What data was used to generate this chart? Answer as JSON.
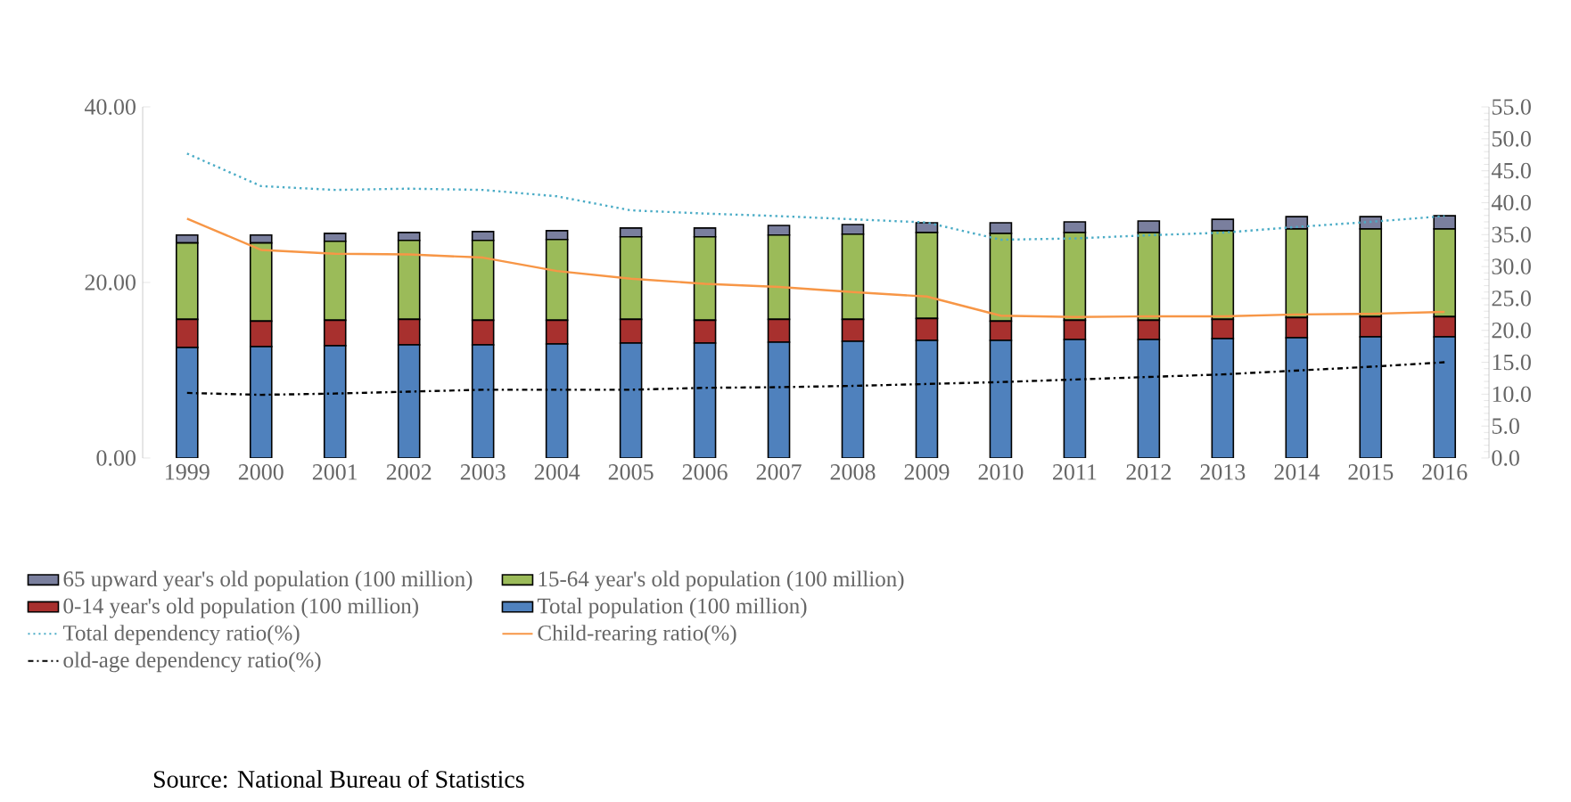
{
  "chart_data": {
    "type": "bar",
    "stacked": true,
    "categories": [
      "1999",
      "2000",
      "2001",
      "2002",
      "2003",
      "2004",
      "2005",
      "2006",
      "2007",
      "2008",
      "2009",
      "2010",
      "2011",
      "2012",
      "2013",
      "2014",
      "2015",
      "2016"
    ],
    "series": [
      {
        "name": "Total population (100 million)",
        "color": "#4f81bd",
        "values": [
          12.6,
          12.7,
          12.8,
          12.9,
          12.9,
          13.0,
          13.1,
          13.1,
          13.2,
          13.3,
          13.4,
          13.4,
          13.5,
          13.5,
          13.6,
          13.7,
          13.8,
          13.8
        ]
      },
      {
        "name": "0-14  year's old population  (100 million)",
        "color": "#a8302e",
        "values": [
          3.2,
          2.9,
          2.9,
          2.9,
          2.8,
          2.7,
          2.7,
          2.6,
          2.6,
          2.5,
          2.5,
          2.2,
          2.2,
          2.2,
          2.2,
          2.3,
          2.3,
          2.3
        ]
      },
      {
        "name": "15-64 year's old population  (100 million)",
        "color": "#9bbb59",
        "values": [
          8.7,
          8.9,
          9.0,
          9.0,
          9.1,
          9.2,
          9.4,
          9.5,
          9.6,
          9.7,
          9.8,
          10.0,
          10.0,
          10.0,
          10.1,
          10.1,
          10.0,
          10.0
        ]
      },
      {
        "name": "65 upward year's old population  (100 million)",
        "color": "#7a7f9e",
        "values": [
          0.9,
          0.9,
          0.9,
          0.9,
          1.0,
          1.0,
          1.0,
          1.0,
          1.1,
          1.1,
          1.1,
          1.2,
          1.2,
          1.3,
          1.3,
          1.4,
          1.4,
          1.5
        ]
      },
      {
        "name": "Total dependency ratio(%)",
        "type": "line",
        "axis": "y2",
        "color": "#4bacc6",
        "line_style": "dotted",
        "values": [
          47.7,
          42.6,
          42.0,
          42.2,
          42.0,
          41.0,
          38.8,
          38.3,
          37.9,
          37.4,
          36.9,
          34.2,
          34.4,
          34.9,
          35.3,
          36.2,
          37.0,
          37.9
        ]
      },
      {
        "name": "Child-rearing ratio(%)",
        "type": "line",
        "axis": "y2",
        "color": "#f79646",
        "line_style": "solid",
        "values": [
          37.5,
          32.6,
          32.0,
          31.9,
          31.4,
          29.3,
          28.1,
          27.3,
          26.8,
          26.0,
          25.3,
          22.3,
          22.1,
          22.2,
          22.2,
          22.5,
          22.6,
          22.9
        ]
      },
      {
        "name": "old-age dependency ratio(%)",
        "type": "line",
        "axis": "y2",
        "color": "#000000",
        "line_style": "dashdot",
        "values": [
          10.2,
          9.9,
          10.1,
          10.4,
          10.7,
          10.7,
          10.7,
          11.0,
          11.1,
          11.3,
          11.6,
          11.9,
          12.3,
          12.7,
          13.1,
          13.7,
          14.3,
          15.0
        ]
      }
    ],
    "ylim": [
      0,
      40
    ],
    "yticks": [
      {
        "value": 0,
        "label": "0.00"
      },
      {
        "value": 20,
        "label": "20.00"
      },
      {
        "value": 40,
        "label": "40.00"
      }
    ],
    "y2lim": [
      0,
      55
    ],
    "y2ticks": [
      {
        "value": 0,
        "label": "0.0"
      },
      {
        "value": 5,
        "label": "5.0"
      },
      {
        "value": 10,
        "label": "10.0"
      },
      {
        "value": 15,
        "label": "15.0"
      },
      {
        "value": 20,
        "label": "20.0"
      },
      {
        "value": 25,
        "label": "25.0"
      },
      {
        "value": 30,
        "label": "30.0"
      },
      {
        "value": 35,
        "label": "35.0"
      },
      {
        "value": 40,
        "label": "40.0"
      },
      {
        "value": 45,
        "label": "45.0"
      },
      {
        "value": 50,
        "label": "50.0"
      },
      {
        "value": 55,
        "label": "55.0"
      }
    ],
    "legend": "bottom",
    "annotations": [
      "Source: National Bureau of Statistics"
    ]
  }
}
